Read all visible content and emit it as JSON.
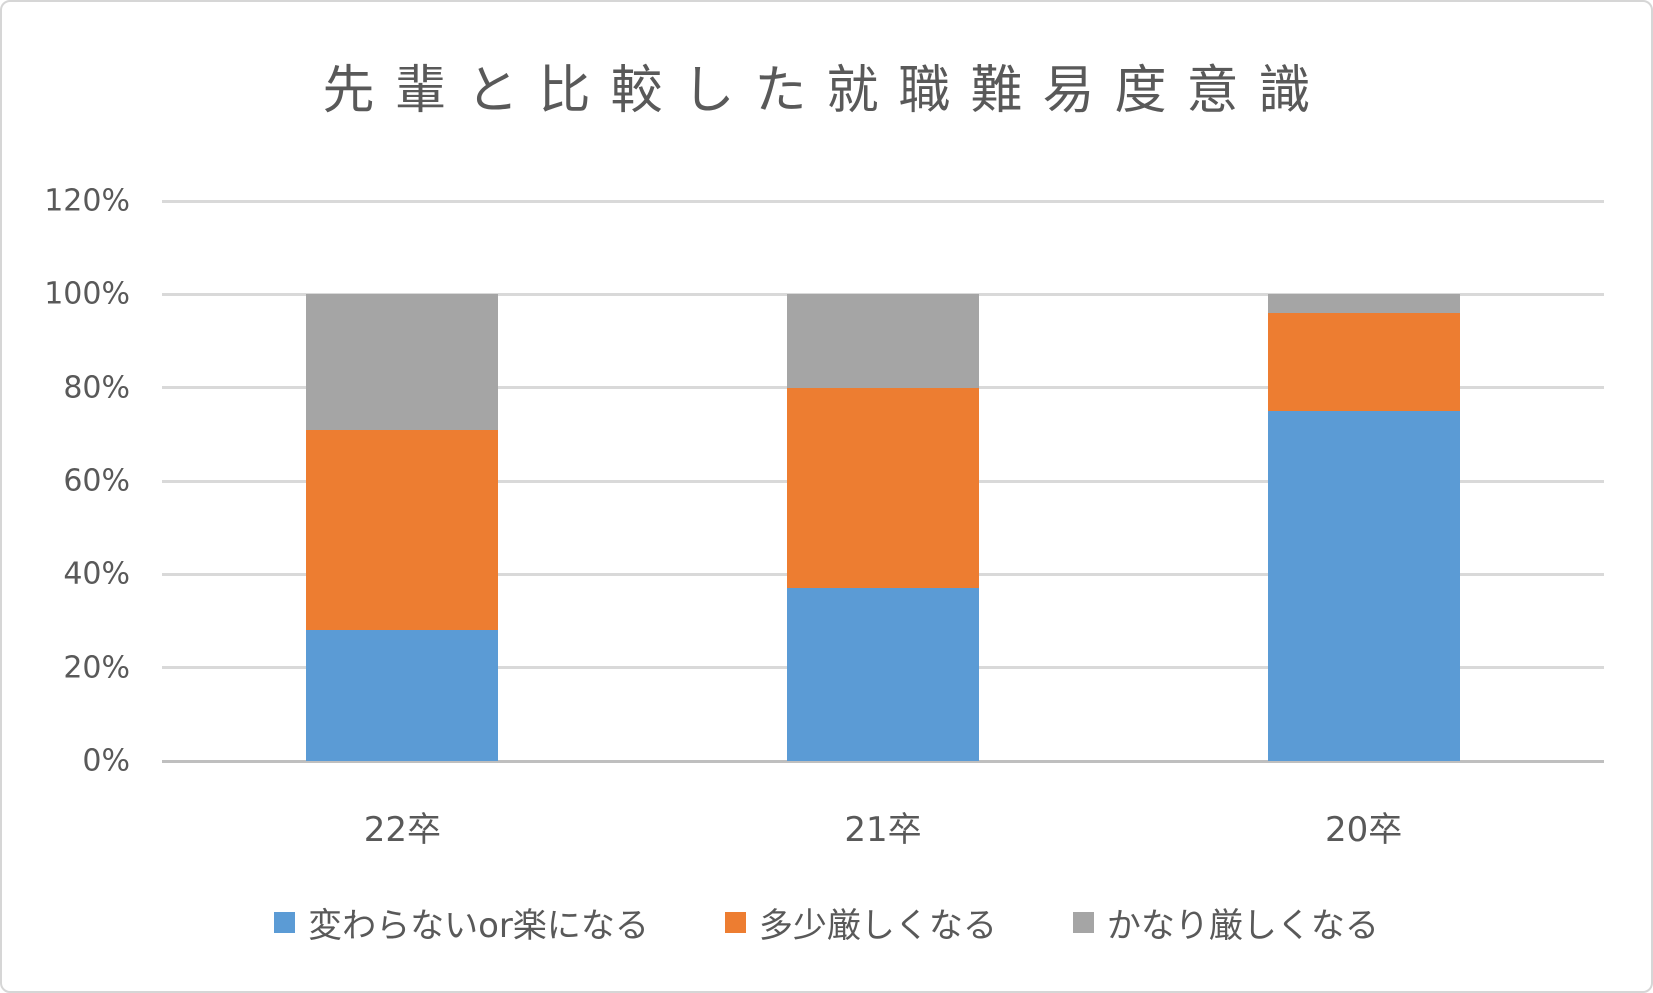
{
  "chart_data": {
    "type": "bar",
    "variant": "stacked-100",
    "title": "先輩と比較した就職難易度意識",
    "categories": [
      "22卒",
      "21卒",
      "20卒"
    ],
    "series": [
      {
        "name": "変わらないor楽になる",
        "color": "#5B9BD5",
        "values": [
          28,
          37,
          75
        ]
      },
      {
        "name": "多少厳しくなる",
        "color": "#ED7D31",
        "values": [
          43,
          43,
          21
        ]
      },
      {
        "name": "かなり厳しくなる",
        "color": "#A5A5A5",
        "values": [
          29,
          20,
          4
        ]
      }
    ],
    "xlabel": "",
    "ylabel": "",
    "ylim": [
      0,
      120
    ],
    "ytick_step": 20,
    "yticks_top_down": [
      "120%",
      "100%",
      "80%",
      "60%",
      "40%",
      "20%",
      "0%"
    ],
    "grid": true,
    "legend_position": "bottom"
  },
  "colors": {
    "title_text": "#595959",
    "axis_text": "#595959",
    "gridline": "#D9D9D9",
    "axis_line": "#BFBFBF",
    "background": "#FFFFFF"
  }
}
